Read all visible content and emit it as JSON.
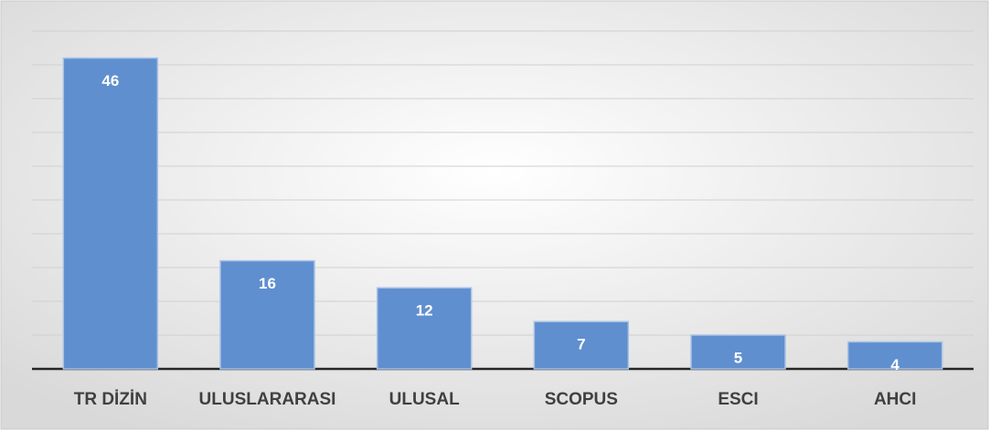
{
  "chart_data": {
    "type": "bar",
    "categories": [
      "TR DİZİN",
      "ULUSLARARASI",
      "ULUSAL",
      "SCOPUS",
      "ESCI",
      "AHCI"
    ],
    "values": [
      46,
      16,
      12,
      7,
      5,
      4
    ],
    "color": "#5f8fcf",
    "ylim": [
      0,
      50
    ],
    "yticks": [
      0,
      5,
      10,
      15,
      20,
      25,
      30,
      35,
      40,
      45,
      50
    ],
    "grid": true
  }
}
